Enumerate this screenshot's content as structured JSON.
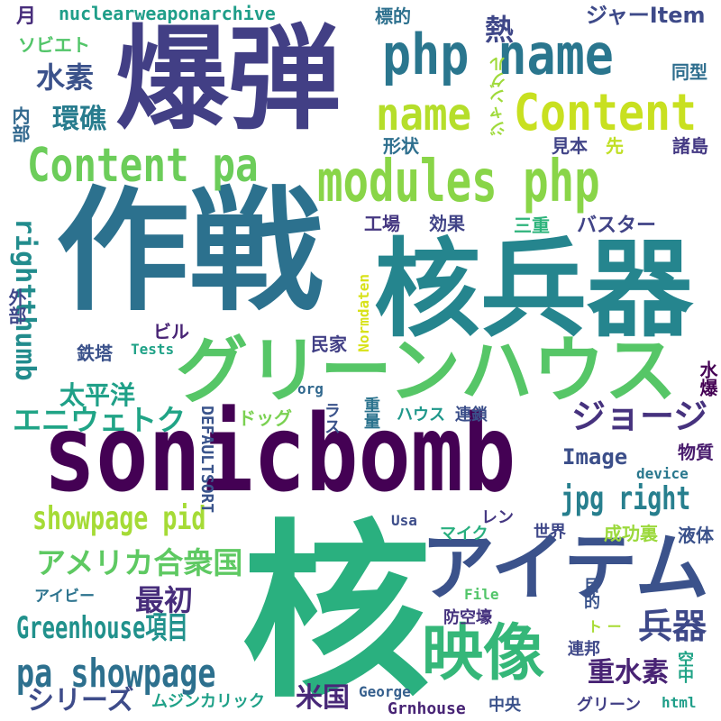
{
  "cloud": {
    "words": [
      {
        "text": "爆弾",
        "color": "#423f85"
      },
      {
        "text": "作戦",
        "color": "#2c718e"
      },
      {
        "text": "核兵器",
        "color": "#25858e"
      },
      {
        "text": "核",
        "color": "#2ab07f"
      },
      {
        "text": "sonicbomb",
        "color": "#440154"
      },
      {
        "text": "php name",
        "color": "#2a768e"
      },
      {
        "text": "modules php",
        "color": "#89d548"
      },
      {
        "text": "name",
        "color": "#b5de2b"
      },
      {
        "text": "Content",
        "color": "#c8e020"
      },
      {
        "text": "Content pa",
        "color": "#6ccd5a"
      },
      {
        "text": "グリーンハウス",
        "color": "#56c667"
      },
      {
        "text": "アイテム",
        "color": "#3b528b"
      },
      {
        "text": "映像",
        "color": "#35b779"
      },
      {
        "text": "ジョージ",
        "color": "#46327e"
      },
      {
        "text": "jpg right",
        "color": "#277f8e"
      },
      {
        "text": "showpage pid",
        "color": "#a5db36"
      },
      {
        "text": "pa showpage",
        "color": "#2d708e"
      },
      {
        "text": "Greenhouse項目",
        "color": "#21918c"
      },
      {
        "text": "アメリカ合衆国",
        "color": "#5ec962"
      },
      {
        "text": "最初",
        "color": "#472d7b"
      },
      {
        "text": "兵器",
        "color": "#3e4989"
      },
      {
        "text": "重水素",
        "color": "#482374"
      },
      {
        "text": "シリーズ",
        "color": "#3e4c8a"
      },
      {
        "text": "エニウェトク",
        "color": "#20a486"
      },
      {
        "text": "太平洋",
        "color": "#1fa088"
      },
      {
        "text": "rightthumb",
        "color": "#228c8d"
      },
      {
        "text": "nuclearweaponarchive",
        "color": "#1f9e89"
      },
      {
        "text": "水素",
        "color": "#3b528b"
      },
      {
        "text": "環礁",
        "color": "#287c8e"
      },
      {
        "text": "熱",
        "color": "#3f4788"
      },
      {
        "text": "米国",
        "color": "#482878"
      },
      {
        "text": "Image",
        "color": "#3c4f8a"
      },
      {
        "text": "DEFAULTSORT",
        "color": "#3a548c"
      },
      {
        "text": "ジャーItem",
        "color": "#3e4a89"
      },
      {
        "text": "標的",
        "color": "#2d708e"
      },
      {
        "text": "月",
        "color": "#472d7b"
      },
      {
        "text": "ソビエト",
        "color": "#52c569"
      },
      {
        "text": "内部",
        "color": "#31688e"
      },
      {
        "text": "同型",
        "color": "#2e6e8e"
      },
      {
        "text": "ジャングル",
        "color": "#9fda3a"
      },
      {
        "text": "形状",
        "color": "#2e6f8e"
      },
      {
        "text": "見本",
        "color": "#414487"
      },
      {
        "text": "先",
        "color": "#c0df25"
      },
      {
        "text": "諸島",
        "color": "#443983"
      },
      {
        "text": "工場",
        "color": "#453781"
      },
      {
        "text": "効果",
        "color": "#414487"
      },
      {
        "text": "三重",
        "color": "#2fb47c"
      },
      {
        "text": "バスター",
        "color": "#414487"
      },
      {
        "text": "外部",
        "color": "#3f4889"
      },
      {
        "text": "Normdaten",
        "color": "#d8e219"
      },
      {
        "text": "ビル",
        "color": "#482475"
      },
      {
        "text": "鉄塔",
        "color": "#3b528b"
      },
      {
        "text": "Tests",
        "color": "#1fa287"
      },
      {
        "text": "民家",
        "color": "#424086"
      },
      {
        "text": "水爆",
        "color": "#440154"
      },
      {
        "text": "org",
        "color": "#31688e"
      },
      {
        "text": "重量",
        "color": "#2c738e"
      },
      {
        "text": "ラス",
        "color": "#3a538b"
      },
      {
        "text": "ドッグ",
        "color": "#7ad151"
      },
      {
        "text": "ハウス",
        "color": "#1f988b"
      },
      {
        "text": "連鎖",
        "color": "#3c4f8a"
      },
      {
        "text": "物質",
        "color": "#481b6d"
      },
      {
        "text": "device",
        "color": "#2a788e"
      },
      {
        "text": "レン",
        "color": "#453882"
      },
      {
        "text": "マイク",
        "color": "#29af7f"
      },
      {
        "text": "世界",
        "color": "#3f4889"
      },
      {
        "text": "成功裏",
        "color": "#9bd93c"
      },
      {
        "text": "液体",
        "color": "#3b528b"
      },
      {
        "text": "Usa",
        "color": "#3d4d8a"
      },
      {
        "text": "アイビー",
        "color": "#2c738e"
      },
      {
        "text": "File",
        "color": "#52c569"
      },
      {
        "text": "目的",
        "color": "#3a548c"
      },
      {
        "text": "ト ー",
        "color": "#a8db34"
      },
      {
        "text": "防空壕",
        "color": "#46337f"
      },
      {
        "text": "連邦",
        "color": "#3f4889"
      },
      {
        "text": "空中",
        "color": "#20a386"
      },
      {
        "text": "George",
        "color": "#355f8d"
      },
      {
        "text": "ムジンカリック",
        "color": "#1fa188"
      },
      {
        "text": "Grnhouse",
        "color": "#482475"
      },
      {
        "text": "中央",
        "color": "#3b528b"
      },
      {
        "text": "グリーン",
        "color": "#424086"
      },
      {
        "text": "html",
        "color": "#1f9e89"
      }
    ]
  }
}
